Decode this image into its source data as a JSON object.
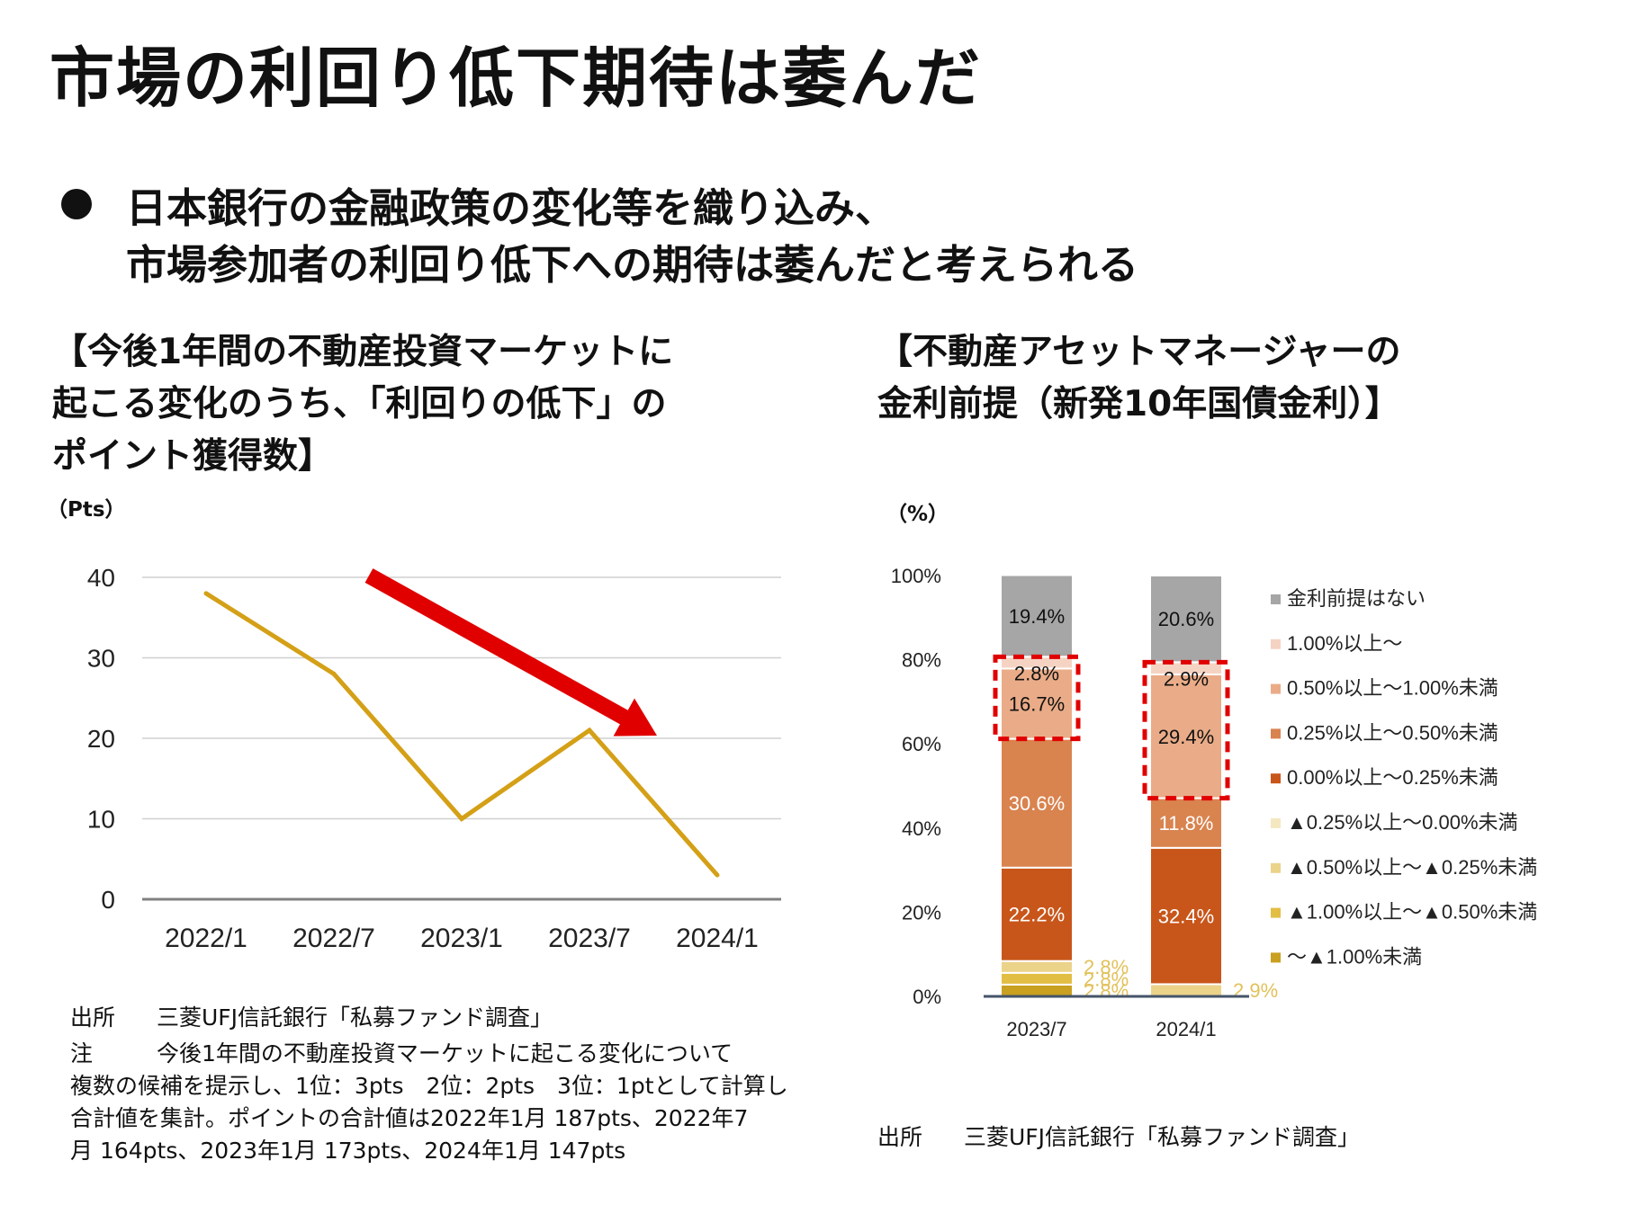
{
  "title": "市場の利回り低下期待は萎んだ",
  "bullet": {
    "line1": "日本銀行の金融政策の変化等を織り込み、",
    "line2": "市場参加者の利回り低下への期待は萎んだと考えられる"
  },
  "left": {
    "heading_lines": [
      "【今後1年間の不動産投資マーケットに",
      "起こる変化のうち、「利回りの低下」の",
      "ポイント獲得数】"
    ],
    "unit": "（Pts）",
    "source_label": "出所",
    "source_text": "三菱UFJ信託銀行「私募ファンド調査」",
    "note_label": "注",
    "note_lines": [
      "今後1年間の不動産投資マーケットに起こる変化について",
      "複数の候補を提示し、1位：3pts　2位：2pts　3位：1ptとして計算し",
      "合計値を集計。ポイントの合計値は2022年1月 187pts、2022年7",
      "月 164pts、2023年1月 173pts、2024年1月 147pts"
    ]
  },
  "right": {
    "heading_lines": [
      "【不動産アセットマネージャーの",
      "金利前提（新発10年国債金利）】"
    ],
    "unit": "（%）",
    "source_label": "出所",
    "source_text": "三菱UFJ信託銀行「私募ファンド調査」"
  },
  "chart_data": [
    {
      "type": "line",
      "title": "",
      "x": [
        "2022/1",
        "2022/7",
        "2023/1",
        "2023/7",
        "2024/1"
      ],
      "series": [
        {
          "values": [
            38,
            28,
            10,
            21,
            3
          ],
          "color": "#D4A017"
        }
      ],
      "ylim": [
        0,
        40
      ],
      "yticks": [
        "0",
        "10",
        "20",
        "30",
        "40"
      ],
      "ylabel": "（Pts）",
      "grid": true,
      "annotation": {
        "type": "arrow",
        "direction": "down",
        "color": "#E00000"
      }
    },
    {
      "type": "bar",
      "stacked": true,
      "title": "",
      "categories": [
        "2023/7",
        "2024/1"
      ],
      "ylim": [
        0,
        100
      ],
      "yticks": [
        "0%",
        "20%",
        "40%",
        "60%",
        "80%",
        "100%"
      ],
      "ylabel": "（%）",
      "legend_position": "right",
      "series": [
        {
          "name": "～▲1.00%未満",
          "values": [
            2.8,
            0
          ],
          "color": "#C9A020",
          "labels": [
            "2.8%",
            ""
          ]
        },
        {
          "name": "▲1.00%以上～▲0.50%未満",
          "values": [
            2.8,
            0
          ],
          "color": "#E2BE45",
          "labels": [
            "2.8%",
            ""
          ]
        },
        {
          "name": "▲0.50%以上～▲0.25%未満",
          "values": [
            2.8,
            2.9
          ],
          "color": "#EBD38A",
          "labels": [
            "2.8%",
            "2.9%"
          ]
        },
        {
          "name": "▲0.25%以上～0.00%未満",
          "values": [
            0,
            0
          ],
          "color": "#F4E8C0",
          "labels": [
            "",
            ""
          ]
        },
        {
          "name": "0.00%以上～0.25%未満",
          "values": [
            22.2,
            32.4
          ],
          "color": "#C8561A",
          "labels": [
            "22.2%",
            "32.4%"
          ]
        },
        {
          "name": "0.25%以上～0.50%未満",
          "values": [
            30.6,
            11.8
          ],
          "color": "#D9834F",
          "labels": [
            "30.6%",
            "11.8%"
          ]
        },
        {
          "name": "0.50%以上～1.00%未満",
          "values": [
            16.7,
            29.4
          ],
          "color": "#EAAC88",
          "labels": [
            "16.7%",
            "29.4%"
          ]
        },
        {
          "name": "1.00%以上～",
          "values": [
            2.8,
            2.9
          ],
          "color": "#F5D3C3",
          "labels": [
            "2.8%",
            "2.9%"
          ]
        },
        {
          "name": "金利前提はない",
          "values": [
            19.4,
            20.6
          ],
          "color": "#A6A6A6",
          "labels": [
            "19.4%",
            "20.6%"
          ]
        }
      ],
      "highlight": {
        "style": "dashed-box",
        "color": "#E00000",
        "series": [
          "0.50%以上～1.00%未満",
          "1.00%以上～"
        ]
      }
    }
  ]
}
